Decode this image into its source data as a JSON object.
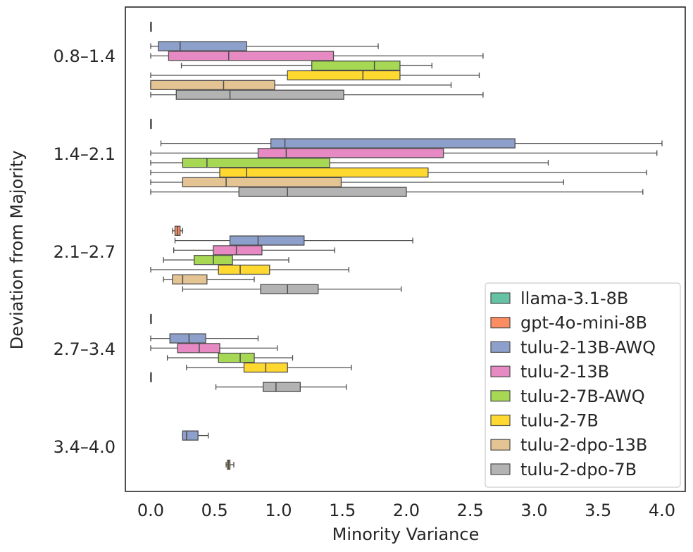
{
  "chart_data": {
    "type": "horizontal-boxplot",
    "title": "",
    "xlabel": "Minority Variance",
    "ylabel": "Deviation from Majority",
    "xlim": [
      -0.2,
      4.2
    ],
    "xticks": [
      0.0,
      0.5,
      1.0,
      1.5,
      2.0,
      2.5,
      3.0,
      3.5,
      4.0
    ],
    "xtick_labels": [
      "0.0",
      "0.5",
      "1.0",
      "1.5",
      "2.0",
      "2.5",
      "3.0",
      "3.5",
      "4.0"
    ],
    "categories": [
      "0.8–1.4",
      "1.4–2.1",
      "2.1–2.7",
      "2.7–3.4",
      "3.4–4.0"
    ],
    "grid": false,
    "legend_position": "bottom-right",
    "series": [
      {
        "name": "llama-3.1-8B",
        "color": "#66c2a5",
        "boxes": [
          {
            "min": 0.0,
            "q1": 0.0,
            "median": 0.0,
            "q3": 0.0,
            "max": 0.0
          },
          {
            "min": 0.0,
            "q1": 0.0,
            "median": 0.0,
            "q3": 0.0,
            "max": 0.0
          },
          null,
          {
            "min": 0.0,
            "q1": 0.0,
            "median": 0.0,
            "q3": 0.0,
            "max": 0.0
          },
          null
        ]
      },
      {
        "name": "gpt-4o-mini-8B",
        "color": "#fc8d62",
        "boxes": [
          null,
          null,
          {
            "min": 0.17,
            "q1": 0.19,
            "median": 0.21,
            "q3": 0.23,
            "max": 0.25
          },
          null,
          null
        ]
      },
      {
        "name": "tulu-2-13B-AWQ",
        "color": "#8da0cb",
        "boxes": [
          {
            "min": 0.0,
            "q1": 0.06,
            "median": 0.23,
            "q3": 0.75,
            "max": 1.78
          },
          {
            "min": 0.08,
            "q1": 0.94,
            "median": 1.05,
            "q3": 2.85,
            "max": 4.0
          },
          {
            "min": 0.19,
            "q1": 0.62,
            "median": 0.84,
            "q3": 1.2,
            "max": 2.05
          },
          {
            "min": 0.0,
            "q1": 0.15,
            "median": 0.3,
            "q3": 0.43,
            "max": 0.84
          },
          {
            "min": 0.25,
            "q1": 0.25,
            "median": 0.28,
            "q3": 0.37,
            "max": 0.45
          }
        ]
      },
      {
        "name": "tulu-2-13B",
        "color": "#e78ac3",
        "boxes": [
          {
            "min": 0.0,
            "q1": 0.14,
            "median": 0.61,
            "q3": 1.43,
            "max": 2.6
          },
          {
            "min": 0.0,
            "q1": 0.84,
            "median": 1.06,
            "q3": 2.29,
            "max": 3.96
          },
          {
            "min": 0.18,
            "q1": 0.49,
            "median": 0.67,
            "q3": 0.87,
            "max": 1.44
          },
          {
            "min": 0.0,
            "q1": 0.21,
            "median": 0.38,
            "q3": 0.54,
            "max": 0.99
          },
          null
        ]
      },
      {
        "name": "tulu-2-7B-AWQ",
        "color": "#a6d854",
        "boxes": [
          {
            "min": 0.24,
            "q1": 1.26,
            "median": 1.75,
            "q3": 1.95,
            "max": 2.2
          },
          {
            "min": 0.0,
            "q1": 0.25,
            "median": 0.44,
            "q3": 1.4,
            "max": 3.11
          },
          {
            "min": 0.1,
            "q1": 0.34,
            "median": 0.49,
            "q3": 0.64,
            "max": 1.08
          },
          {
            "min": 0.13,
            "q1": 0.53,
            "median": 0.7,
            "q3": 0.81,
            "max": 1.11
          },
          null
        ]
      },
      {
        "name": "tulu-2-7B",
        "color": "#ffd92f",
        "boxes": [
          {
            "min": 0.0,
            "q1": 1.07,
            "median": 1.66,
            "q3": 1.95,
            "max": 2.57
          },
          {
            "min": 0.0,
            "q1": 0.54,
            "median": 0.75,
            "q3": 2.17,
            "max": 3.88
          },
          {
            "min": 0.0,
            "q1": 0.53,
            "median": 0.7,
            "q3": 0.93,
            "max": 1.55
          },
          {
            "min": 0.28,
            "q1": 0.73,
            "median": 0.9,
            "q3": 1.07,
            "max": 1.57
          },
          {
            "min": 0.59,
            "q1": 0.6,
            "median": 0.61,
            "q3": 0.62,
            "max": 0.65
          }
        ]
      },
      {
        "name": "tulu-2-dpo-13B",
        "color": "#e5c494",
        "boxes": [
          {
            "min": 0.0,
            "q1": 0.0,
            "median": 0.57,
            "q3": 0.97,
            "max": 2.35
          },
          {
            "min": 0.0,
            "q1": 0.25,
            "median": 0.59,
            "q3": 1.49,
            "max": 3.23
          },
          {
            "min": 0.1,
            "q1": 0.17,
            "median": 0.25,
            "q3": 0.44,
            "max": 0.81
          },
          {
            "min": 0.0,
            "q1": 0.0,
            "median": 0.0,
            "q3": 0.0,
            "max": 0.0
          },
          null
        ]
      },
      {
        "name": "tulu-2-dpo-7B",
        "color": "#b3b3b3",
        "boxes": [
          {
            "min": 0.0,
            "q1": 0.2,
            "median": 0.62,
            "q3": 1.51,
            "max": 2.6
          },
          {
            "min": 0.0,
            "q1": 0.69,
            "median": 1.07,
            "q3": 2.0,
            "max": 3.85
          },
          {
            "min": 0.25,
            "q1": 0.86,
            "median": 1.07,
            "q3": 1.31,
            "max": 1.96
          },
          {
            "min": 0.51,
            "q1": 0.88,
            "median": 0.98,
            "q3": 1.17,
            "max": 1.53
          },
          null
        ]
      }
    ]
  }
}
